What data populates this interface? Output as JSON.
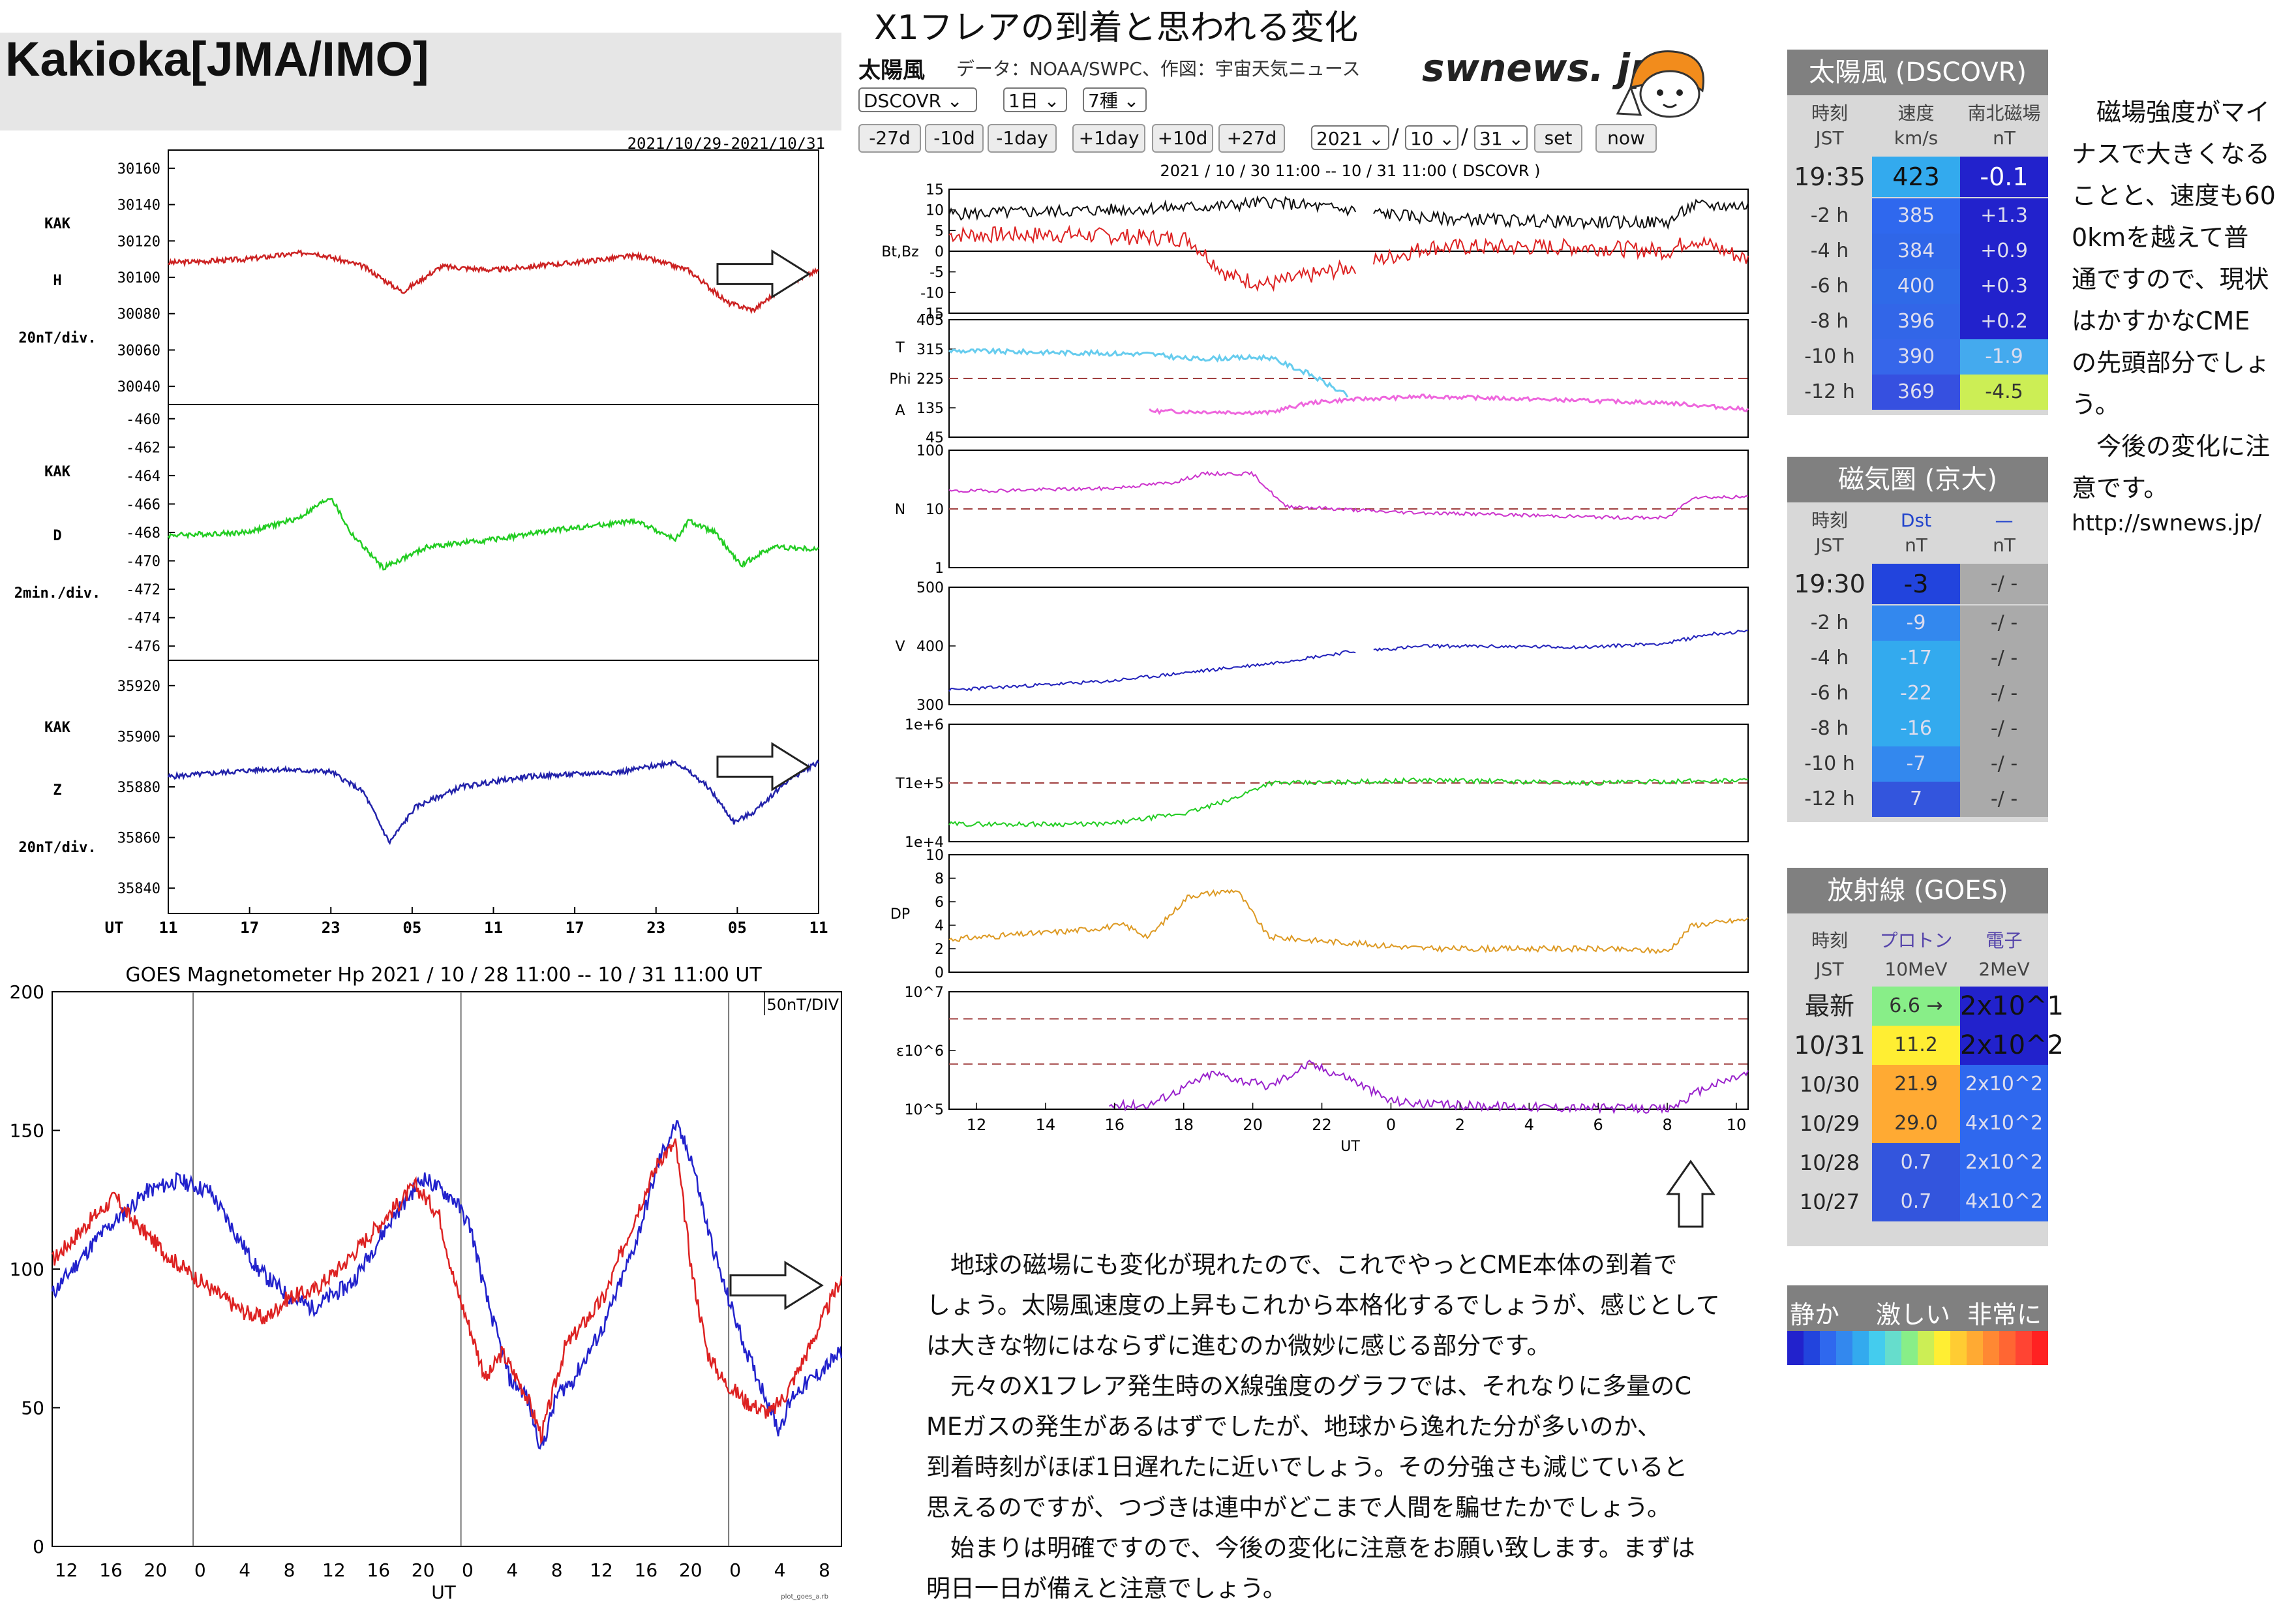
{
  "kakioka": {
    "title": "Kakioka[JMA/IMO]",
    "date_range": "2021/10/29-2021/10/31",
    "panels": [
      {
        "station": "KAK",
        "comp": "H",
        "scale": "20nT/div.",
        "ticks": [
          "30160",
          "30140",
          "30120",
          "30100",
          "30080",
          "30060",
          "30040"
        ],
        "color": "#cc2222"
      },
      {
        "station": "KAK",
        "comp": "D",
        "scale": "2min./div.",
        "ticks": [
          "-460",
          "-462",
          "-464",
          "-466",
          "-468",
          "-470",
          "-472",
          "-474",
          "-476"
        ],
        "color": "#22cc22"
      },
      {
        "station": "KAK",
        "comp": "Z",
        "scale": "20nT/div.",
        "ticks": [
          "35920",
          "35900",
          "35880",
          "35860",
          "35840"
        ],
        "color": "#2222aa"
      }
    ],
    "xaxis_label": "UT",
    "xticks": [
      "11",
      "17",
      "23",
      "05",
      "11",
      "17",
      "23",
      "05",
      "11"
    ]
  },
  "goes": {
    "title": "GOES Magnetometer Hp   2021 / 10 / 28   11:00 -- 10 / 31   11:00   UT",
    "scale": "50nT/DIV",
    "yticks": [
      "200",
      "150",
      "100",
      "50",
      "0"
    ],
    "xticks": [
      "12",
      "16",
      "20",
      "0",
      "4",
      "8",
      "12",
      "16",
      "20",
      "0",
      "4",
      "8",
      "12",
      "16",
      "20",
      "0",
      "4",
      "8"
    ],
    "xlabel": "UT",
    "footnote": "plot_goes_a.rb"
  },
  "swnews": {
    "page_title": "X1フレアの到着と思われる変化",
    "section": "太陽風",
    "credit": "データ：NOAA/SWPC、作図：宇宙天気ニュース",
    "logo": "swnews. jp",
    "selects": [
      "DSCOVR",
      "1日",
      "7種"
    ],
    "buttons": [
      "-27d",
      "-10d",
      "-1day",
      "+1day",
      "+10d",
      "+27d"
    ],
    "date_selects": [
      "2021",
      "10",
      "31"
    ],
    "slash": "/",
    "set_label": "set",
    "now_label": "now",
    "plot_title": "2021 / 10 / 30    11:00  --  10 / 31    11:00  ( DSCOVR )",
    "xticks": [
      "12",
      "14",
      "16",
      "18",
      "20",
      "22",
      "0",
      "2",
      "4",
      "6",
      "8",
      "10"
    ],
    "xlabel": "UT",
    "panels": [
      {
        "label": "Bt,Bz",
        "ticks": [
          "15",
          "10",
          "5",
          "0",
          "-5",
          "-10",
          "-15"
        ]
      },
      {
        "label": "T\nPhi\nA",
        "ticks": [
          "405",
          "315",
          "225",
          "135",
          "45"
        ]
      },
      {
        "label": "N",
        "ticks": [
          "100",
          "10",
          "1"
        ]
      },
      {
        "label": "V",
        "ticks": [
          "500",
          "400",
          "300"
        ]
      },
      {
        "label": "T",
        "ticks": [
          "1e+6",
          "1e+5",
          "1e+4"
        ]
      },
      {
        "label": "DP",
        "ticks": [
          "10",
          "8",
          "6",
          "4",
          "2",
          "0"
        ]
      },
      {
        "label": "ε",
        "ticks": [
          "10^7",
          "10^6",
          "10^5"
        ]
      }
    ]
  },
  "paragraphs": [
    "　地球の磁場にも変化が現れたので、これでやっとCME本体の到着で",
    "しょう。太陽風速度の上昇もこれから本格化するでしょうが、感じとして",
    "は大きな物にはならずに進むのか微妙に感じる部分です。",
    "　元々のX1フレア発生時のX線強度のグラフでは、それなりに多量のC",
    "MEガスの発生があるはずでしたが、地球から逸れた分が多いのか、",
    "到着時刻がほぼ1日遅れたに近いでしょう。その分強さも減じていると",
    "思えるのですが、つづきは連中がどこまで人間を騙せたかでしょう。",
    "　始まりは明確ですので、今後の変化に注意をお願い致します。まずは",
    "明日一日が備えと注意でしょう。"
  ],
  "dscovr_table": {
    "title": "太陽風 (DSCOVR)",
    "headers": [
      [
        "時刻",
        "JST"
      ],
      [
        "速度",
        "km/s"
      ],
      [
        "南北磁場",
        "nT"
      ]
    ],
    "latest": {
      "time": "19:35",
      "v": "423",
      "bz": "-0.1"
    },
    "rows": [
      {
        "time": "-2 h",
        "v": "385",
        "bz": "+1.3"
      },
      {
        "time": "-4 h",
        "v": "384",
        "bz": "+0.9"
      },
      {
        "time": "-6 h",
        "v": "400",
        "bz": "+0.3"
      },
      {
        "time": "-8 h",
        "v": "396",
        "bz": "+0.2"
      },
      {
        "time": "-10 h",
        "v": "390",
        "bz": "-1.9"
      },
      {
        "time": "-12 h",
        "v": "369",
        "bz": "-4.5"
      }
    ]
  },
  "dst_table": {
    "title": "磁気圏 (京大)",
    "headers": [
      [
        "時刻",
        "JST"
      ],
      [
        "Dst",
        "nT"
      ],
      [
        "—",
        "nT"
      ]
    ],
    "latest": {
      "time": "19:30",
      "dst": "-3",
      "other": "-/ -"
    },
    "rows": [
      {
        "time": "-2 h",
        "dst": "-9",
        "other": "-/ -"
      },
      {
        "time": "-4 h",
        "dst": "-17",
        "other": "-/ -"
      },
      {
        "time": "-6 h",
        "dst": "-22",
        "other": "-/ -"
      },
      {
        "time": "-8 h",
        "dst": "-16",
        "other": "-/ -"
      },
      {
        "time": "-10 h",
        "dst": "-7",
        "other": "-/ -"
      },
      {
        "time": "-12 h",
        "dst": "7",
        "other": "-/ -"
      }
    ]
  },
  "goes_table": {
    "title": "放射線 (GOES)",
    "headers": [
      [
        "時刻",
        "JST"
      ],
      [
        "プロトン",
        "10MeV"
      ],
      [
        "電子",
        "2MeV"
      ]
    ],
    "rows": [
      {
        "time": "最新",
        "p": "6.6 →",
        "e": "2x10^1"
      },
      {
        "time": "10/31",
        "p": "11.2",
        "e": "2x10^2"
      },
      {
        "time": "10/30",
        "p": "21.9",
        "e": "2x10^2"
      },
      {
        "time": "10/29",
        "p": "29.0",
        "e": "4x10^2"
      },
      {
        "time": "10/28",
        "p": "0.7",
        "e": "2x10^2"
      },
      {
        "time": "10/27",
        "p": "0.7",
        "e": "4x10^2"
      }
    ]
  },
  "legend": {
    "labels": [
      "静か",
      "激しい",
      "非常に"
    ]
  },
  "side_note": [
    "　磁場強度がマイ",
    "ナスで大きくなる",
    "ことと、速度も60",
    "0kmを越えて普",
    "通ですので、現状",
    "はかすかなCME",
    "の先頭部分でしょ",
    "う。",
    "　今後の変化に注",
    "意です。"
  ],
  "side_url": "http://swnews.jp/"
}
